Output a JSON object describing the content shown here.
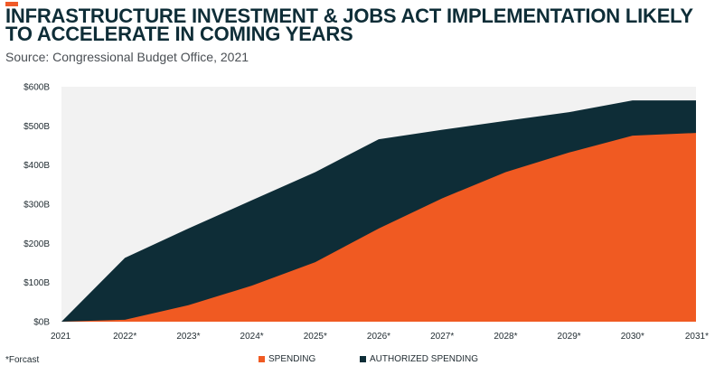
{
  "header": {
    "title": "INFRASTRUCTURE INVESTMENT & JOBS ACT IMPLEMENTATION LIKELY TO ACCELERATE IN COMING YEARS",
    "subtitle": "Source: Congressional Budget Office, 2021"
  },
  "footnote": "*Forcast",
  "colors": {
    "accent": "#f05a28",
    "spending": "#f05a22",
    "authorized": "#0e2d37",
    "plot_bg": "#f2f2f2"
  },
  "chart_data": {
    "type": "area",
    "categories": [
      "2021",
      "2022*",
      "2023*",
      "2024*",
      "2025*",
      "2026*",
      "2027*",
      "2028*",
      "2029*",
      "2030*",
      "2031*"
    ],
    "series": [
      {
        "name": "SPENDING",
        "values": [
          0,
          5,
          42,
          92,
          152,
          238,
          315,
          382,
          432,
          475,
          482
        ]
      },
      {
        "name": "AUTHORIZED SPENDING",
        "values": [
          0,
          163,
          238,
          310,
          382,
          466,
          490,
          513,
          535,
          565,
          565
        ]
      }
    ],
    "ylim": [
      0,
      600
    ],
    "yticks": [
      "$0B",
      "$100B",
      "$200B",
      "$300B",
      "$400B",
      "$500B",
      "$600B"
    ],
    "ytick_values": [
      0,
      100,
      200,
      300,
      400,
      500,
      600
    ],
    "grid": false,
    "legend": "bottom-center"
  }
}
